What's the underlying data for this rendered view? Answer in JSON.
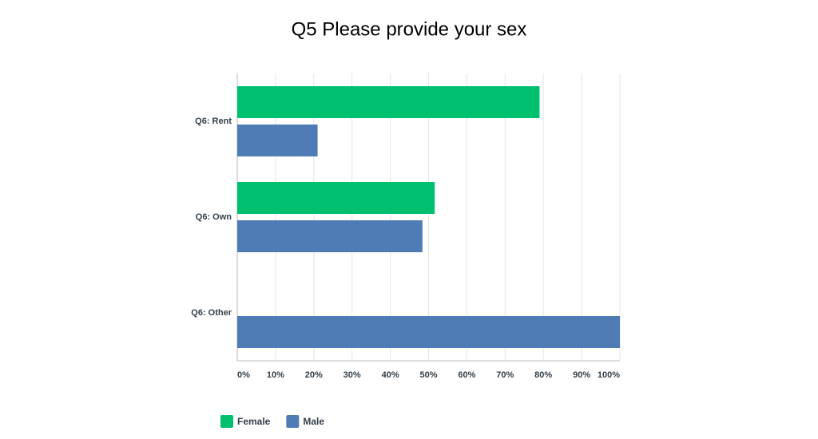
{
  "chart_data": {
    "type": "bar",
    "orientation": "horizontal",
    "title": "Q5 Please provide your sex",
    "categories": [
      "Q6: Rent",
      "Q6: Own",
      "Q6: Other"
    ],
    "series": [
      {
        "name": "Female",
        "color": "#00bf6f",
        "values": [
          79,
          51.6,
          0
        ]
      },
      {
        "name": "Male",
        "color": "#4f7cb5",
        "values": [
          21,
          48.4,
          100
        ]
      }
    ],
    "xlim": [
      0,
      100
    ],
    "xticks": [
      {
        "value": 0,
        "label": "0%"
      },
      {
        "value": 10,
        "label": "10%"
      },
      {
        "value": 20,
        "label": "20%"
      },
      {
        "value": 30,
        "label": "30%"
      },
      {
        "value": 40,
        "label": "40%"
      },
      {
        "value": 50,
        "label": "50%"
      },
      {
        "value": 60,
        "label": "60%"
      },
      {
        "value": 70,
        "label": "70%"
      },
      {
        "value": 80,
        "label": "80%"
      },
      {
        "value": 90,
        "label": "90%"
      },
      {
        "value": 100,
        "label": "100%"
      }
    ],
    "grid": true,
    "legend": "bottom"
  }
}
